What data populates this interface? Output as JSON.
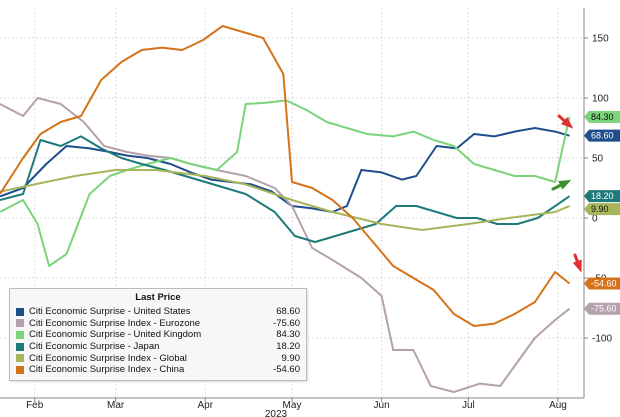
{
  "chart_data": {
    "type": "line",
    "title": "",
    "xlabel": "",
    "ylabel": "",
    "ylim": [
      -150,
      175
    ],
    "xlim": [
      "2023-01-20",
      "2023-08-10"
    ],
    "grid": true,
    "legend_title": "Last Price",
    "legend_position": "bottom-left",
    "year_label": "2023",
    "x_ticks": [
      {
        "label": "Feb",
        "date": "2023-02-01"
      },
      {
        "label": "Mar",
        "date": "2023-03-01"
      },
      {
        "label": "Apr",
        "date": "2023-04-01"
      },
      {
        "label": "May",
        "date": "2023-05-01"
      },
      {
        "label": "Jun",
        "date": "2023-06-01"
      },
      {
        "label": "Jul",
        "date": "2023-07-01"
      },
      {
        "label": "Aug",
        "date": "2023-08-01"
      }
    ],
    "y_ticks": [
      150,
      100,
      50,
      0,
      -50,
      -100
    ],
    "series": [
      {
        "name": "Citi Economic Surprise - United States",
        "last": "68.60",
        "color": "#1f4e8c",
        "points": [
          [
            "2023-01-20",
            18
          ],
          [
            "2023-01-28",
            25
          ],
          [
            "2023-02-05",
            45
          ],
          [
            "2023-02-12",
            60
          ],
          [
            "2023-02-20",
            58
          ],
          [
            "2023-02-27",
            55
          ],
          [
            "2023-03-05",
            52
          ],
          [
            "2023-03-12",
            50
          ],
          [
            "2023-03-20",
            45
          ],
          [
            "2023-03-27",
            38
          ],
          [
            "2023-04-03",
            32
          ],
          [
            "2023-04-10",
            30
          ],
          [
            "2023-04-17",
            28
          ],
          [
            "2023-04-24",
            22
          ],
          [
            "2023-05-01",
            10
          ],
          [
            "2023-05-08",
            8
          ],
          [
            "2023-05-15",
            5
          ],
          [
            "2023-05-20",
            10
          ],
          [
            "2023-05-25",
            40
          ],
          [
            "2023-06-01",
            38
          ],
          [
            "2023-06-08",
            32
          ],
          [
            "2023-06-13",
            35
          ],
          [
            "2023-06-20",
            60
          ],
          [
            "2023-06-27",
            58
          ],
          [
            "2023-07-03",
            70
          ],
          [
            "2023-07-10",
            68
          ],
          [
            "2023-07-17",
            72
          ],
          [
            "2023-07-24",
            75
          ],
          [
            "2023-07-31",
            72
          ],
          [
            "2023-08-05",
            68.6
          ]
        ]
      },
      {
        "name": "Citi Economic Surprise Index - Eurozone",
        "last": "-75.60",
        "color": "#b5a0ae",
        "points": [
          [
            "2023-01-20",
            95
          ],
          [
            "2023-01-28",
            85
          ],
          [
            "2023-02-02",
            100
          ],
          [
            "2023-02-10",
            95
          ],
          [
            "2023-02-18",
            80
          ],
          [
            "2023-02-25",
            60
          ],
          [
            "2023-03-05",
            55
          ],
          [
            "2023-03-12",
            52
          ],
          [
            "2023-03-20",
            50
          ],
          [
            "2023-03-27",
            45
          ],
          [
            "2023-04-05",
            40
          ],
          [
            "2023-04-15",
            35
          ],
          [
            "2023-04-25",
            25
          ],
          [
            "2023-05-01",
            10
          ],
          [
            "2023-05-08",
            -25
          ],
          [
            "2023-05-15",
            -35
          ],
          [
            "2023-05-25",
            -50
          ],
          [
            "2023-06-01",
            -65
          ],
          [
            "2023-06-05",
            -110
          ],
          [
            "2023-06-12",
            -110
          ],
          [
            "2023-06-18",
            -140
          ],
          [
            "2023-06-26",
            -145
          ],
          [
            "2023-07-05",
            -138
          ],
          [
            "2023-07-12",
            -140
          ],
          [
            "2023-07-18",
            -120
          ],
          [
            "2023-07-24",
            -100
          ],
          [
            "2023-07-31",
            -85
          ],
          [
            "2023-08-05",
            -75.6
          ]
        ]
      },
      {
        "name": "Citi Economic Surprise - United Kingdom",
        "last": "84.30",
        "color": "#7bd37a",
        "points": [
          [
            "2023-01-20",
            5
          ],
          [
            "2023-01-28",
            15
          ],
          [
            "2023-02-02",
            -5
          ],
          [
            "2023-02-06",
            -40
          ],
          [
            "2023-02-12",
            -30
          ],
          [
            "2023-02-20",
            20
          ],
          [
            "2023-02-27",
            35
          ],
          [
            "2023-03-05",
            40
          ],
          [
            "2023-03-12",
            45
          ],
          [
            "2023-03-20",
            50
          ],
          [
            "2023-03-27",
            45
          ],
          [
            "2023-04-05",
            40
          ],
          [
            "2023-04-12",
            55
          ],
          [
            "2023-04-15",
            95
          ],
          [
            "2023-04-22",
            96
          ],
          [
            "2023-04-29",
            98
          ],
          [
            "2023-05-06",
            90
          ],
          [
            "2023-05-13",
            80
          ],
          [
            "2023-05-20",
            75
          ],
          [
            "2023-05-27",
            70
          ],
          [
            "2023-06-05",
            68
          ],
          [
            "2023-06-12",
            72
          ],
          [
            "2023-06-19",
            65
          ],
          [
            "2023-06-26",
            60
          ],
          [
            "2023-07-03",
            45
          ],
          [
            "2023-07-10",
            40
          ],
          [
            "2023-07-17",
            35
          ],
          [
            "2023-07-24",
            35
          ],
          [
            "2023-07-31",
            30
          ],
          [
            "2023-08-05",
            84.3
          ]
        ]
      },
      {
        "name": "Citi Economic Surprise - Japan",
        "last": "18.20",
        "color": "#1e7a7a",
        "points": [
          [
            "2023-01-20",
            15
          ],
          [
            "2023-01-28",
            20
          ],
          [
            "2023-02-03",
            65
          ],
          [
            "2023-02-10",
            60
          ],
          [
            "2023-02-17",
            68
          ],
          [
            "2023-02-24",
            58
          ],
          [
            "2023-03-03",
            50
          ],
          [
            "2023-03-10",
            45
          ],
          [
            "2023-03-18",
            40
          ],
          [
            "2023-03-25",
            35
          ],
          [
            "2023-04-01",
            30
          ],
          [
            "2023-04-08",
            25
          ],
          [
            "2023-04-15",
            20
          ],
          [
            "2023-04-25",
            5
          ],
          [
            "2023-05-02",
            -15
          ],
          [
            "2023-05-09",
            -20
          ],
          [
            "2023-05-16",
            -15
          ],
          [
            "2023-05-23",
            -10
          ],
          [
            "2023-05-30",
            -5
          ],
          [
            "2023-06-06",
            10
          ],
          [
            "2023-06-13",
            10
          ],
          [
            "2023-06-20",
            5
          ],
          [
            "2023-06-27",
            0
          ],
          [
            "2023-07-04",
            0
          ],
          [
            "2023-07-11",
            -5
          ],
          [
            "2023-07-18",
            -5
          ],
          [
            "2023-07-25",
            0
          ],
          [
            "2023-08-05",
            18.2
          ]
        ]
      },
      {
        "name": "Citi Economic Surprise Index - Global",
        "last": "9.90",
        "color": "#a8b55a",
        "points": [
          [
            "2023-01-20",
            22
          ],
          [
            "2023-02-01",
            28
          ],
          [
            "2023-02-15",
            35
          ],
          [
            "2023-03-01",
            40
          ],
          [
            "2023-03-15",
            40
          ],
          [
            "2023-04-01",
            35
          ],
          [
            "2023-04-15",
            28
          ],
          [
            "2023-05-01",
            15
          ],
          [
            "2023-05-15",
            5
          ],
          [
            "2023-06-01",
            -5
          ],
          [
            "2023-06-15",
            -10
          ],
          [
            "2023-07-01",
            -5
          ],
          [
            "2023-07-15",
            0
          ],
          [
            "2023-07-31",
            5
          ],
          [
            "2023-08-05",
            9.9
          ]
        ]
      },
      {
        "name": "Citi Economic Surprise Index - China",
        "last": "-54.60",
        "color": "#d4731a",
        "points": [
          [
            "2023-01-20",
            20
          ],
          [
            "2023-01-28",
            50
          ],
          [
            "2023-02-03",
            70
          ],
          [
            "2023-02-10",
            80
          ],
          [
            "2023-02-17",
            85
          ],
          [
            "2023-02-24",
            115
          ],
          [
            "2023-03-03",
            130
          ],
          [
            "2023-03-10",
            140
          ],
          [
            "2023-03-17",
            142
          ],
          [
            "2023-03-24",
            140
          ],
          [
            "2023-03-31",
            148
          ],
          [
            "2023-04-07",
            160
          ],
          [
            "2023-04-14",
            155
          ],
          [
            "2023-04-21",
            150
          ],
          [
            "2023-04-28",
            120
          ],
          [
            "2023-05-01",
            30
          ],
          [
            "2023-05-08",
            25
          ],
          [
            "2023-05-15",
            15
          ],
          [
            "2023-05-22",
            0
          ],
          [
            "2023-05-29",
            -20
          ],
          [
            "2023-06-05",
            -40
          ],
          [
            "2023-06-12",
            -50
          ],
          [
            "2023-06-19",
            -60
          ],
          [
            "2023-06-26",
            -80
          ],
          [
            "2023-07-03",
            -90
          ],
          [
            "2023-07-10",
            -88
          ],
          [
            "2023-07-17",
            -80
          ],
          [
            "2023-07-24",
            -70
          ],
          [
            "2023-07-31",
            -45
          ],
          [
            "2023-08-05",
            -54.6
          ]
        ]
      }
    ]
  }
}
